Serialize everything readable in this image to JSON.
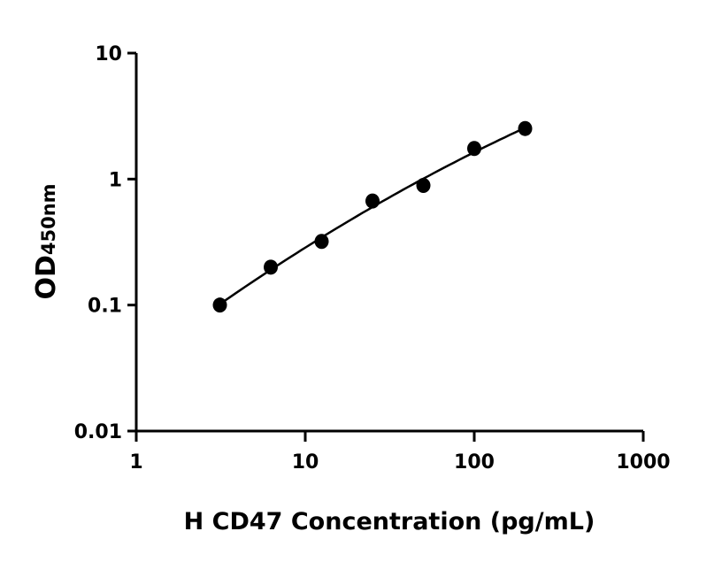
{
  "chart_data": {
    "type": "scatter",
    "title": "",
    "xlabel": "H CD47 Concentration (pg/mL)",
    "ylabel_main": "OD",
    "ylabel_sub": "450nm",
    "x_scale": "log",
    "y_scale": "log",
    "xlim": [
      1,
      1000
    ],
    "ylim": [
      0.01,
      10
    ],
    "x_ticks": [
      "1",
      "10",
      "100",
      "1000"
    ],
    "y_ticks": [
      "0.01",
      "0.1",
      "1",
      "10"
    ],
    "grid": false,
    "legend": "none",
    "fit_curve": true,
    "series": [
      {
        "x": [
          3.125,
          6.25,
          12.5,
          25,
          50,
          100,
          200
        ],
        "y": [
          0.1,
          0.2,
          0.32,
          0.67,
          0.89,
          1.75,
          2.52
        ]
      }
    ],
    "colors": {
      "marker": "#000000",
      "line": "#000000"
    }
  }
}
